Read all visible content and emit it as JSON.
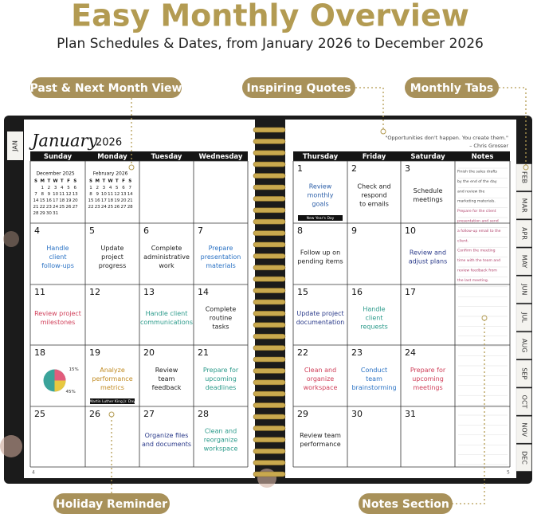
{
  "header": {
    "title": "Easy Monthly Overview",
    "subtitle": "Plan Schedules & Dates, from January 2026 to December 2026"
  },
  "callouts": [
    "Past & Next Month View",
    "Inspiring Quotes",
    "Monthly Tabs",
    "Holiday Reminder",
    "Notes Section"
  ],
  "left_page": {
    "tab": "JAN",
    "month": "January",
    "year": "2026",
    "page_number": "4",
    "weekdays": [
      "Sunday",
      "Monday",
      "Tuesday",
      "Wednesday"
    ],
    "mini_calendars": [
      {
        "title": "December 2025",
        "weekdays": [
          "S",
          "M",
          "T",
          "W",
          "T",
          "F",
          "S"
        ],
        "weeks": [
          [
            null,
            1,
            2,
            3,
            4,
            5,
            6
          ],
          [
            7,
            8,
            9,
            10,
            11,
            12,
            13
          ],
          [
            14,
            15,
            16,
            17,
            18,
            19,
            20
          ],
          [
            21,
            22,
            23,
            24,
            25,
            26,
            27
          ],
          [
            28,
            29,
            30,
            31,
            null,
            null,
            null
          ]
        ]
      },
      {
        "title": "February 2026",
        "weekdays": [
          "S",
          "M",
          "T",
          "W",
          "T",
          "F",
          "S"
        ],
        "weeks": [
          [
            1,
            2,
            3,
            4,
            5,
            6,
            7
          ],
          [
            8,
            9,
            10,
            11,
            12,
            13,
            14
          ],
          [
            15,
            16,
            17,
            18,
            19,
            20,
            21
          ],
          [
            22,
            23,
            24,
            25,
            26,
            27,
            28
          ]
        ]
      }
    ],
    "weeks": [
      [
        {
          "day": 4,
          "note": [
            "Handle",
            "client",
            "follow-ups"
          ],
          "color": "#2a72c4"
        },
        {
          "day": 5,
          "note": [
            "Update",
            "project",
            "progress"
          ],
          "color": "#222222"
        },
        {
          "day": 6,
          "note": [
            "Complete",
            "administrative",
            "work"
          ],
          "color": "#222222"
        },
        {
          "day": 7,
          "note": [
            "Prepare",
            "presentation",
            "materials"
          ],
          "color": "#2a72c4"
        }
      ],
      [
        {
          "day": 11,
          "note": [
            "Review project",
            "milestones"
          ],
          "color": "#d0405a"
        },
        {
          "day": 12
        },
        {
          "day": 13,
          "note": [
            "Handle client",
            "communications"
          ],
          "color": "#2a9a8a"
        },
        {
          "day": 14,
          "note": [
            "Complete",
            "routine",
            "tasks"
          ],
          "color": "#222222"
        }
      ],
      [
        {
          "day": 18,
          "labels": [
            "15%",
            "45%"
          ]
        },
        {
          "day": 19,
          "note": [
            "Analyze",
            "performance",
            "metrics"
          ],
          "color": "#c08a20",
          "holiday": "Martin Luther King Jr. Day"
        },
        {
          "day": 20,
          "note": [
            "Review",
            "team",
            "feedback"
          ],
          "color": "#222222"
        },
        {
          "day": 21,
          "note": [
            "Prepare for",
            "upcoming",
            "deadlines"
          ],
          "color": "#2a9a8a"
        }
      ],
      [
        {
          "day": 25
        },
        {
          "day": 26
        },
        {
          "day": 27,
          "note": [
            "Organize files",
            "and documents"
          ],
          "color": "#2a3a8a"
        },
        {
          "day": 28,
          "note": [
            "Clean and",
            "reorganize",
            "workspace"
          ],
          "color": "#2a9a8a"
        }
      ]
    ]
  },
  "right_page": {
    "quote": "\"Opportunities don't happen. You create them.\"",
    "quote_author": "– Chris Grosser",
    "page_number": "5",
    "weekdays": [
      "Thursday",
      "Friday",
      "Saturday",
      "Notes"
    ],
    "weeks": [
      [
        {
          "day": 1,
          "note": [
            "Review",
            "monthly",
            "goals"
          ],
          "color": "#2b5ea8",
          "holiday": "New Year's Day"
        },
        {
          "day": 2,
          "note": [
            "Check and",
            "respond",
            "to emails"
          ],
          "color": "#222222"
        },
        {
          "day": 3,
          "note": [
            "Schedule",
            "meetings"
          ],
          "color": "#222222"
        }
      ],
      [
        {
          "day": 8,
          "note": [
            "Follow up on",
            "pending items"
          ],
          "color": "#222222"
        },
        {
          "day": 9
        },
        {
          "day": 10,
          "note": [
            "Review and",
            "adjust plans"
          ],
          "color": "#2a3a8a"
        }
      ],
      [
        {
          "day": 15,
          "note": [
            "Update project",
            "documentation"
          ],
          "color": "#2a3a8a"
        },
        {
          "day": 16,
          "note": [
            "Handle",
            "client",
            "requests"
          ],
          "color": "#2a9a8a"
        },
        {
          "day": 17
        }
      ],
      [
        {
          "day": 22,
          "note": [
            "Clean and",
            "organize",
            "workspace"
          ],
          "color": "#d0405a"
        },
        {
          "day": 23,
          "note": [
            "Conduct",
            "team",
            "brainstorming"
          ],
          "color": "#2a72c4"
        },
        {
          "day": 24,
          "note": [
            "Prepare for",
            "upcoming",
            "meetings"
          ],
          "color": "#d0405a"
        }
      ],
      [
        {
          "day": 29,
          "note": [
            "Review team",
            "performance"
          ],
          "color": "#222222"
        },
        {
          "day": 30
        },
        {
          "day": 31
        }
      ]
    ],
    "notes": [
      "Finish the sales drafts",
      "by the end of the day",
      "and review the",
      "marketing materials.",
      "Prepare for the client",
      "presentation and send",
      "a follow-up email to the",
      "client.",
      "Confirm the meeting",
      "time with the team and",
      "review feedback from",
      "the last meeting."
    ],
    "tabs": [
      "FEB",
      "MAR",
      "APR",
      "MAY",
      "JUN",
      "JUL",
      "AUG",
      "SEP",
      "OCT",
      "NOV",
      "DEC"
    ]
  }
}
